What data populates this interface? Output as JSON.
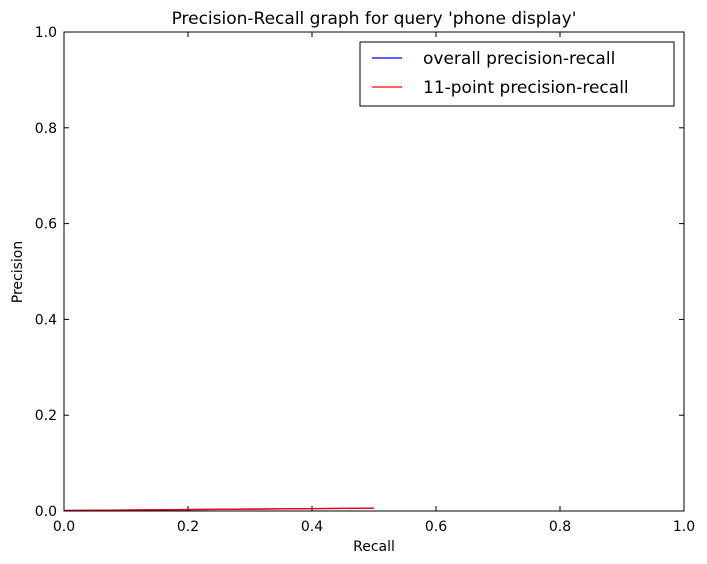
{
  "chart_data": {
    "type": "line",
    "title": "Precision-Recall graph for query 'phone display'",
    "xlabel": "Recall",
    "ylabel": "Precision",
    "xlim": [
      0.0,
      1.0
    ],
    "ylim": [
      0.0,
      1.0
    ],
    "x_ticks": [
      "0.0",
      "0.2",
      "0.4",
      "0.6",
      "0.8",
      "1.0"
    ],
    "y_ticks": [
      "0.0",
      "0.2",
      "0.4",
      "0.6",
      "0.8",
      "1.0"
    ],
    "grid": false,
    "legend_position": "upper right",
    "series": [
      {
        "name": "overall precision-recall",
        "color": "#0000ff",
        "x": [
          0.0,
          0.5
        ],
        "y": [
          0.001,
          0.006
        ]
      },
      {
        "name": "11-point precision-recall",
        "color": "#ff0000",
        "x": [
          0.0,
          0.1,
          0.2,
          0.3,
          0.4,
          0.5
        ],
        "y": [
          0.001,
          0.002,
          0.003,
          0.004,
          0.005,
          0.006
        ]
      }
    ]
  }
}
